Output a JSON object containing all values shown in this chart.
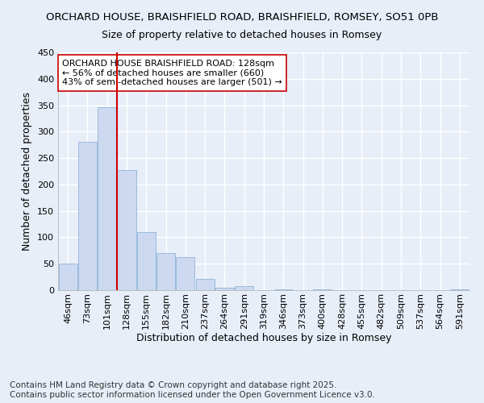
{
  "title_line1": "ORCHARD HOUSE, BRAISHFIELD ROAD, BRAISHFIELD, ROMSEY, SO51 0PB",
  "title_line2": "Size of property relative to detached houses in Romsey",
  "xlabel": "Distribution of detached houses by size in Romsey",
  "ylabel": "Number of detached properties",
  "categories": [
    "46sqm",
    "73sqm",
    "101sqm",
    "128sqm",
    "155sqm",
    "182sqm",
    "210sqm",
    "237sqm",
    "264sqm",
    "291sqm",
    "319sqm",
    "346sqm",
    "373sqm",
    "400sqm",
    "428sqm",
    "455sqm",
    "482sqm",
    "509sqm",
    "537sqm",
    "564sqm",
    "591sqm"
  ],
  "values": [
    50,
    280,
    347,
    228,
    110,
    70,
    63,
    21,
    5,
    7,
    0,
    2,
    0,
    1,
    0,
    0,
    0,
    0,
    0,
    0,
    2
  ],
  "bar_color": "#ccd9f0",
  "bar_edge_color": "#8fb4d9",
  "vline_color": "#cc0000",
  "annotation_text": "ORCHARD HOUSE BRAISHFIELD ROAD: 128sqm\n← 56% of detached houses are smaller (660)\n43% of semi-detached houses are larger (501) →",
  "annotation_box_facecolor": "white",
  "annotation_box_edgecolor": "#cc0000",
  "ylim": [
    0,
    450
  ],
  "yticks": [
    0,
    50,
    100,
    150,
    200,
    250,
    300,
    350,
    400,
    450
  ],
  "footer": "Contains HM Land Registry data © Crown copyright and database right 2025.\nContains public sector information licensed under the Open Government Licence v3.0.",
  "bg_color": "#e8eef8",
  "plot_bg_color": "#e8eef8",
  "grid_color": "white",
  "title_fontsize": 9.5,
  "subtitle_fontsize": 9,
  "axis_label_fontsize": 9,
  "tick_fontsize": 8,
  "annotation_fontsize": 8,
  "footer_fontsize": 7.5
}
